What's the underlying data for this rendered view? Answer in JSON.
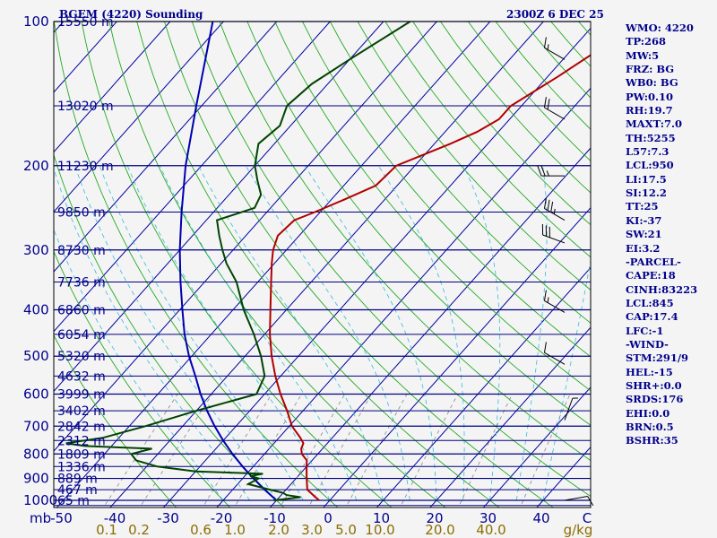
{
  "header": {
    "station": "BGEM (4220) Sounding",
    "time": "2300Z  6 DEC 25"
  },
  "side_panel": [
    "WMO: 4220",
    "TP:268",
    "MW:5",
    "FRZ: BG",
    "WB0: BG",
    "PW:0.10",
    "RH:19.7",
    "MAXT:7.0",
    "TH:5255",
    "L57:7.3",
    "LCL:950",
    "LI:17.5",
    "SI:12.2",
    "TT:25",
    "KI:-37",
    "SW:21",
    "EI:3.2",
    "-PARCEL-",
    "CAPE:18",
    "CINH:83223",
    "LCL:845",
    "CAP:17.4",
    "LFC:-1",
    "-WIND-",
    "STM:291/9",
    "HEL:-15",
    "SHR+:0.0",
    "SRDS:176",
    "EHI:0.0",
    "BRN:0.5",
    "BSHR:35"
  ],
  "chart_data": {
    "type": "skew-t",
    "title": "BGEM (4220) Sounding",
    "valid_time": "2300Z  6 DEC 25",
    "pressure_axis": {
      "unit": "mb",
      "range": [
        1000,
        100
      ],
      "tick_labels": [
        "100",
        "200",
        "300",
        "400",
        "500",
        "600",
        "700",
        "800",
        "900",
        "1000"
      ]
    },
    "temperature_axis": {
      "unit": "C",
      "tick_labels": [
        "-50",
        "-40",
        "-30",
        "-20",
        "-10",
        "0",
        "10",
        "20",
        "30",
        "40",
        "C"
      ],
      "values": [
        -50,
        -40,
        -30,
        -20,
        -10,
        0,
        10,
        20,
        30,
        40
      ]
    },
    "mixing_ratio_axis": {
      "unit": "g/kg",
      "tick_labels": [
        "0.1",
        "0.2",
        "0.6",
        "1.0",
        "2.0",
        "3.0",
        "5.0",
        "10.0",
        "20.0",
        "40.0",
        "g/kg"
      ],
      "values": [
        0.1,
        0.2,
        0.6,
        1.0,
        2.0,
        3.0,
        5.0,
        10.0,
        20.0,
        40.0
      ]
    },
    "height_labels": [
      {
        "p": 100,
        "label": "15550 m"
      },
      {
        "p": 150,
        "label": "13020 m"
      },
      {
        "p": 200,
        "label": "11230 m"
      },
      {
        "p": 250,
        "label": "9850 m"
      },
      {
        "p": 300,
        "label": "8730 m"
      },
      {
        "p": 350,
        "label": "7736 m"
      },
      {
        "p": 400,
        "label": "6860 m"
      },
      {
        "p": 450,
        "label": "6054 m"
      },
      {
        "p": 500,
        "label": "5320 m"
      },
      {
        "p": 550,
        "label": "4632 m"
      },
      {
        "p": 600,
        "label": "3999 m"
      },
      {
        "p": 650,
        "label": "3402 m"
      },
      {
        "p": 700,
        "label": "2842 m"
      },
      {
        "p": 750,
        "label": "2312 m"
      },
      {
        "p": 800,
        "label": "1809 m"
      },
      {
        "p": 850,
        "label": "1336 m"
      },
      {
        "p": 900,
        "label": "889 m"
      },
      {
        "p": 950,
        "label": "467 m"
      },
      {
        "p": 1000,
        "label": "65 m"
      }
    ],
    "temperature_profile": {
      "name": "Temperature",
      "color": "#b00000",
      "points": [
        {
          "p": 1000,
          "t": -2
        },
        {
          "p": 975,
          "t": -4
        },
        {
          "p": 950,
          "t": -6
        },
        {
          "p": 925,
          "t": -7
        },
        {
          "p": 900,
          "t": -8
        },
        {
          "p": 875,
          "t": -9
        },
        {
          "p": 850,
          "t": -10
        },
        {
          "p": 825,
          "t": -11
        },
        {
          "p": 800,
          "t": -13
        },
        {
          "p": 780,
          "t": -14
        },
        {
          "p": 760,
          "t": -14.5
        },
        {
          "p": 740,
          "t": -16
        },
        {
          "p": 700,
          "t": -19.5
        },
        {
          "p": 650,
          "t": -23
        },
        {
          "p": 600,
          "t": -27
        },
        {
          "p": 550,
          "t": -31
        },
        {
          "p": 500,
          "t": -35
        },
        {
          "p": 450,
          "t": -39
        },
        {
          "p": 400,
          "t": -43
        },
        {
          "p": 350,
          "t": -47.5
        },
        {
          "p": 320,
          "t": -50.5
        },
        {
          "p": 300,
          "t": -52.5
        },
        {
          "p": 280,
          "t": -54
        },
        {
          "p": 260,
          "t": -53.5
        },
        {
          "p": 250,
          "t": -51
        },
        {
          "p": 235,
          "t": -47.5
        },
        {
          "p": 220,
          "t": -44
        },
        {
          "p": 200,
          "t": -43.5
        },
        {
          "p": 180,
          "t": -37
        },
        {
          "p": 170,
          "t": -34
        },
        {
          "p": 160,
          "t": -32
        },
        {
          "p": 150,
          "t": -32
        },
        {
          "p": 130,
          "t": -28
        },
        {
          "p": 115,
          "t": -25
        },
        {
          "p": 100,
          "t": -22
        }
      ]
    },
    "dewpoint_profile": {
      "name": "Dewpoint",
      "color": "#004400",
      "points": [
        {
          "p": 1000,
          "t": -10.5
        },
        {
          "p": 985,
          "t": -6
        },
        {
          "p": 975,
          "t": -9
        },
        {
          "p": 965,
          "t": -10
        },
        {
          "p": 950,
          "t": -13
        },
        {
          "p": 925,
          "t": -18
        },
        {
          "p": 900,
          "t": -17
        },
        {
          "p": 890,
          "t": -19
        },
        {
          "p": 880,
          "t": -17
        },
        {
          "p": 870,
          "t": -30
        },
        {
          "p": 850,
          "t": -38
        },
        {
          "p": 825,
          "t": -43
        },
        {
          "p": 800,
          "t": -45
        },
        {
          "p": 780,
          "t": -42
        },
        {
          "p": 770,
          "t": -55
        },
        {
          "p": 760,
          "t": -59
        },
        {
          "p": 740,
          "t": -53
        },
        {
          "p": 700,
          "t": -47
        },
        {
          "p": 650,
          "t": -40
        },
        {
          "p": 600,
          "t": -31.5
        },
        {
          "p": 550,
          "t": -33
        },
        {
          "p": 500,
          "t": -37
        },
        {
          "p": 450,
          "t": -42
        },
        {
          "p": 400,
          "t": -48
        },
        {
          "p": 350,
          "t": -54
        },
        {
          "p": 320,
          "t": -59
        },
        {
          "p": 300,
          "t": -62
        },
        {
          "p": 280,
          "t": -65
        },
        {
          "p": 260,
          "t": -68
        },
        {
          "p": 245,
          "t": -63
        },
        {
          "p": 230,
          "t": -64
        },
        {
          "p": 215,
          "t": -67
        },
        {
          "p": 200,
          "t": -70
        },
        {
          "p": 180,
          "t": -73
        },
        {
          "p": 165,
          "t": -72
        },
        {
          "p": 150,
          "t": -74
        },
        {
          "p": 135,
          "t": -73
        },
        {
          "p": 120,
          "t": -70
        },
        {
          "p": 100,
          "t": -65
        }
      ]
    },
    "parcel_profile": {
      "name": "Parcel",
      "color": "#0000b0",
      "points": [
        {
          "p": 1000,
          "t": -10
        },
        {
          "p": 950,
          "t": -14
        },
        {
          "p": 900,
          "t": -18
        },
        {
          "p": 850,
          "t": -22
        },
        {
          "p": 800,
          "t": -26
        },
        {
          "p": 750,
          "t": -30
        },
        {
          "p": 700,
          "t": -34
        },
        {
          "p": 650,
          "t": -38
        },
        {
          "p": 600,
          "t": -42
        },
        {
          "p": 550,
          "t": -46
        },
        {
          "p": 500,
          "t": -50.5
        },
        {
          "p": 450,
          "t": -55
        },
        {
          "p": 400,
          "t": -59.5
        },
        {
          "p": 350,
          "t": -64.5
        },
        {
          "p": 300,
          "t": -70
        },
        {
          "p": 250,
          "t": -76
        },
        {
          "p": 200,
          "t": -83
        },
        {
          "p": 150,
          "t": -91
        },
        {
          "p": 100,
          "t": -102
        }
      ]
    },
    "wind_barbs": [
      {
        "p": 120,
        "dir": 300,
        "kt": 15
      },
      {
        "p": 160,
        "dir": 300,
        "kt": 20
      },
      {
        "p": 210,
        "dir": 270,
        "kt": 25
      },
      {
        "p": 260,
        "dir": 300,
        "kt": 35
      },
      {
        "p": 290,
        "dir": 290,
        "kt": 30
      },
      {
        "p": 405,
        "dir": 300,
        "kt": 15
      },
      {
        "p": 520,
        "dir": 300,
        "kt": 10
      },
      {
        "p": 680,
        "dir": 20,
        "kt": 5
      },
      {
        "p": 1000,
        "dir": 80,
        "kt": 10
      }
    ]
  }
}
